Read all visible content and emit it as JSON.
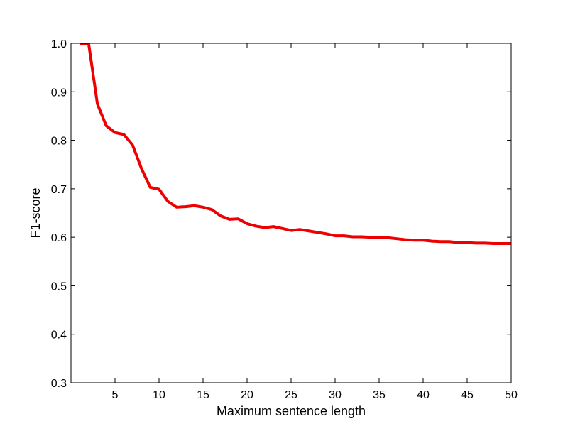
{
  "chart_data": {
    "type": "line",
    "xlabel": "Maximum sentence length",
    "ylabel": "F1-score",
    "xlim": [
      0,
      50
    ],
    "ylim": [
      0.3,
      1.0
    ],
    "xticks": [
      5,
      10,
      15,
      20,
      25,
      30,
      35,
      40,
      45,
      50
    ],
    "xtick_labels": [
      "5",
      "10",
      "15",
      "20",
      "25",
      "30",
      "35",
      "40",
      "45",
      "50"
    ],
    "yticks": [
      0.3,
      0.4,
      0.5,
      0.6,
      0.7,
      0.8,
      0.9,
      1.0
    ],
    "ytick_labels": [
      "0.3",
      "0.4",
      "0.5",
      "0.6",
      "0.7",
      "0.8",
      "0.9",
      "1.0"
    ],
    "grid": false,
    "legend": false,
    "series": [
      {
        "color": "#ee0000",
        "x": [
          1,
          2,
          3,
          4,
          5,
          6,
          7,
          8,
          9,
          10,
          11,
          12,
          13,
          14,
          15,
          16,
          17,
          18,
          19,
          20,
          21,
          22,
          23,
          24,
          25,
          26,
          27,
          28,
          29,
          30,
          31,
          32,
          33,
          34,
          35,
          36,
          37,
          38,
          39,
          40,
          41,
          42,
          43,
          44,
          45,
          46,
          47,
          48,
          49,
          50
        ],
        "y": [
          1.0,
          1.0,
          0.875,
          0.83,
          0.816,
          0.812,
          0.79,
          0.742,
          0.703,
          0.699,
          0.674,
          0.662,
          0.663,
          0.665,
          0.662,
          0.657,
          0.644,
          0.637,
          0.638,
          0.628,
          0.623,
          0.62,
          0.622,
          0.618,
          0.614,
          0.616,
          0.613,
          0.61,
          0.607,
          0.603,
          0.603,
          0.601,
          0.601,
          0.6,
          0.599,
          0.599,
          0.597,
          0.595,
          0.594,
          0.594,
          0.592,
          0.591,
          0.591,
          0.589,
          0.589,
          0.588,
          0.588,
          0.587,
          0.587,
          0.587
        ]
      }
    ]
  }
}
